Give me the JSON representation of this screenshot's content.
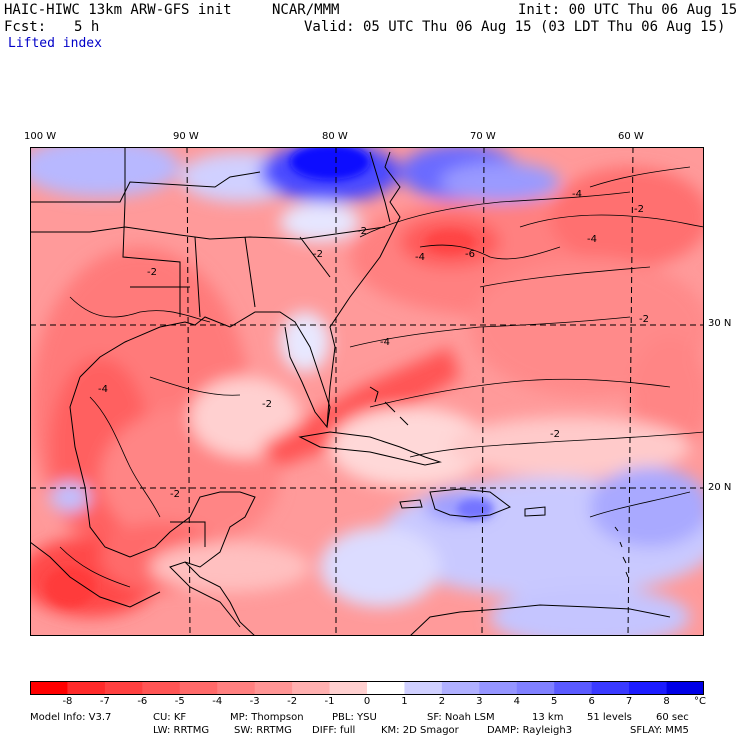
{
  "header": {
    "model": "HAIC-HIWC 13km ARW-GFS init",
    "org": "NCAR/MMM",
    "init": "Init: 00 UTC Thu 06 Aug 15",
    "fcst_label": "Fcst:",
    "fcst_value": "5 h",
    "valid": "Valid: 05 UTC Thu 06 Aug 15 (03 LDT Thu 06 Aug 15)",
    "field": "Lifted index"
  },
  "map": {
    "lon_labels": [
      "100 W",
      "90 W",
      "80 W",
      "70 W",
      "60 W"
    ],
    "lat_labels": [
      "30 N",
      "20 N"
    ],
    "contour_labels": [
      "-4",
      "-2",
      "-2",
      "-2",
      "-6",
      "-4",
      "-4",
      "-2",
      "-4",
      "-2",
      "-2",
      "-4",
      "-2",
      "-2"
    ]
  },
  "colorbar": {
    "unit": "°C",
    "ticks": [
      "-8",
      "-7",
      "-6",
      "-5",
      "-4",
      "-3",
      "-2",
      "-1",
      "0",
      "1",
      "2",
      "3",
      "4",
      "5",
      "6",
      "7",
      "8"
    ],
    "colors": [
      "#ff0000",
      "#ff2a2a",
      "#ff4040",
      "#ff5555",
      "#ff6a6a",
      "#ff8080",
      "#ff9595",
      "#ffb0b0",
      "#ffd0d0",
      "#ffffff",
      "#d0d0ff",
      "#b0b0ff",
      "#9595ff",
      "#8080ff",
      "#5a5aff",
      "#3a3aff",
      "#1c1cff",
      "#0000e6"
    ]
  },
  "info": {
    "line1": [
      "Model Info: V3.7",
      "CU: KF",
      "MP: Thompson",
      "PBL: YSU",
      "SF: Noah LSM",
      "13 km",
      "51 levels",
      "60 sec"
    ],
    "line2": [
      "LW: RRTMG",
      "SW: RRTMG",
      "DIFF: full",
      "KM: 2D Smagor",
      "DAMP: Rayleigh3",
      "SFLAY: MM5"
    ]
  }
}
